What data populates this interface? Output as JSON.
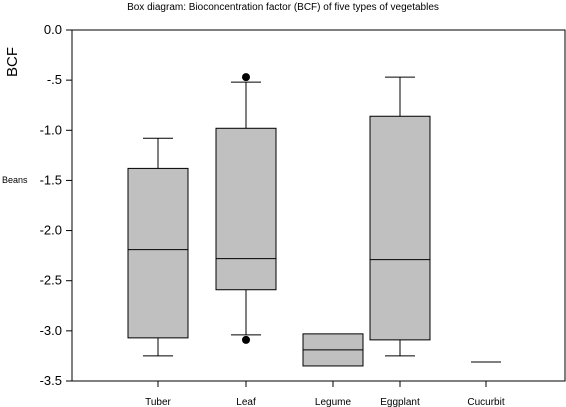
{
  "chart_data": {
    "type": "box",
    "title": "Box diagram: Bioconcentration factor (BCF) of five types of vegetables",
    "ylabel": "BCF",
    "side_label": "Beans",
    "ylim": [
      -3.5,
      0.0
    ],
    "yticks": [
      0.0,
      -0.5,
      -1.0,
      -1.5,
      -2.0,
      -2.5,
      -3.0,
      -3.5
    ],
    "ytick_labels": [
      "0.0",
      "-.5",
      "-1.0",
      "-1.5",
      "-2.0",
      "-2.5",
      "-3.0",
      "-3.5"
    ],
    "categories": [
      "Tuber",
      "Leaf",
      "Legume",
      "Eggplant",
      "Cucurbit"
    ],
    "boxes": [
      {
        "category": "Tuber",
        "whisker_high": -1.08,
        "q3": -1.38,
        "median": -2.19,
        "q1": -3.07,
        "whisker_low": -3.25,
        "outliers": []
      },
      {
        "category": "Leaf",
        "whisker_high": -0.52,
        "q3": -0.98,
        "median": -2.28,
        "q1": -2.59,
        "whisker_low": -3.04,
        "outliers": [
          -0.47,
          -3.09
        ]
      },
      {
        "category": "Legume",
        "whisker_high": -3.03,
        "q3": -3.03,
        "median": -3.19,
        "q1": -3.35,
        "whisker_low": -3.35,
        "outliers": []
      },
      {
        "category": "Eggplant",
        "whisker_high": -0.47,
        "q3": -0.86,
        "median": -2.29,
        "q1": -3.09,
        "whisker_low": -3.25,
        "outliers": []
      },
      {
        "category": "Cucurbit",
        "whisker_high": -3.31,
        "q3": -3.31,
        "median": -3.31,
        "q1": -3.31,
        "whisker_low": -3.31,
        "outliers": []
      }
    ],
    "box_fill": "#c0c0c0",
    "line_color": "#000000",
    "grid": false,
    "legend": "none"
  }
}
